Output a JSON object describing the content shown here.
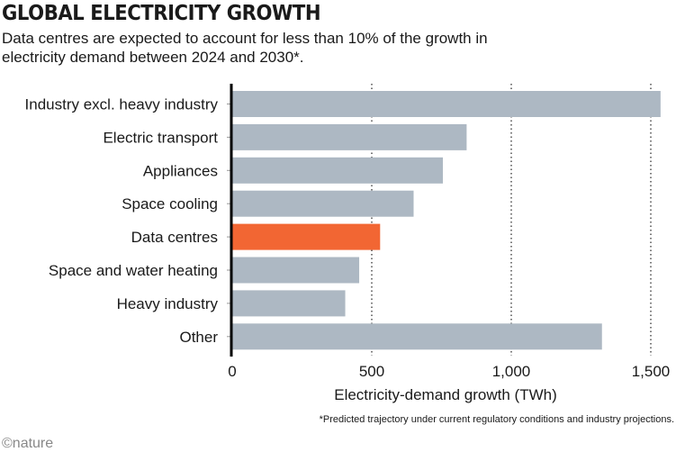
{
  "title": "GLOBAL ELECTRICITY GROWTH",
  "subtitle": "Data centres are expected to account for less than 10% of the growth in electricity demand between 2024 and 2030*.",
  "footnote": "*Predicted trajectory under current regulatory conditions and industry projections.",
  "logo": "©nature",
  "chart_data": {
    "type": "bar",
    "orientation": "horizontal",
    "categories": [
      "Industry excl. heavy industry",
      "Electric transport",
      "Appliances",
      "Space cooling",
      "Data centres",
      "Space and water heating",
      "Heavy industry",
      "Other"
    ],
    "values": [
      1535,
      840,
      755,
      650,
      530,
      455,
      405,
      1325
    ],
    "highlight": "Data centres",
    "xlabel": "Electricity-demand growth (TWh)",
    "xlim": [
      0,
      1500
    ],
    "xticks": [
      0,
      500,
      1000,
      1500
    ],
    "xtick_labels": [
      "0",
      "500",
      "1,000",
      "1,500"
    ],
    "grid": "vertical dotted",
    "colors": {
      "bar": "#adb8c3",
      "highlight": "#f26633"
    }
  }
}
